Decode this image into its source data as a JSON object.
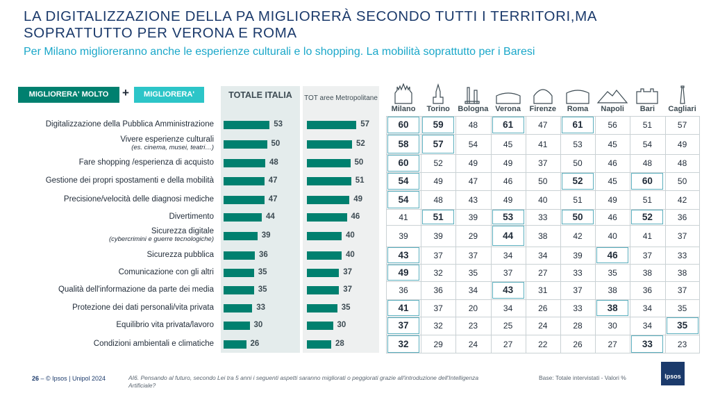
{
  "title": "LA DIGITALIZZAZIONE DELLA PA MIGLIORERÀ SECONDO TUTTI I TERRITORI,MA SOPRATTUTTO PER VERONA E ROMA",
  "subtitle": "Per Milano miglioreranno anche le esperienze culturali e lo shopping. La mobilità soprattutto per i Baresi",
  "legend": {
    "molto": "MIGLIORERA' MOLTO",
    "plus": "+",
    "migliorera": "MIGLIORERA'"
  },
  "colors": {
    "bar": "#00806f",
    "accent": "#2cc5c8",
    "title": "#1b3a6b",
    "subtitle": "#1aa7c9",
    "highlight_box": "#5aaebd"
  },
  "chart_data": {
    "type": "table",
    "columns": {
      "totale": "TOTALE ITALIA",
      "metro": "TOT aree Metropolitane"
    },
    "cities": [
      {
        "name": "Milano",
        "icon": "duomo-milano-icon"
      },
      {
        "name": "Torino",
        "icon": "mole-antonelliana-icon"
      },
      {
        "name": "Bologna",
        "icon": "torri-bologna-icon"
      },
      {
        "name": "Verona",
        "icon": "arena-verona-icon"
      },
      {
        "name": "Firenze",
        "icon": "duomo-firenze-icon"
      },
      {
        "name": "Roma",
        "icon": "colosseo-icon"
      },
      {
        "name": "Napoli",
        "icon": "vesuvio-icon"
      },
      {
        "name": "Bari",
        "icon": "basilica-bari-icon"
      },
      {
        "name": "Cagliari",
        "icon": "faro-cagliari-icon"
      }
    ],
    "rows": [
      {
        "label": "Digitalizzazione della Pubblica Amministrazione",
        "sub": "",
        "totale": 53,
        "metro": 57,
        "cities": [
          60,
          59,
          48,
          61,
          47,
          61,
          56,
          51,
          57
        ],
        "highlight": [
          0,
          1,
          3,
          5
        ]
      },
      {
        "label": "Vivere esperienze culturali",
        "sub": "(es. cinema, musei, teatri…)",
        "totale": 50,
        "metro": 52,
        "cities": [
          58,
          57,
          54,
          45,
          41,
          53,
          45,
          54,
          49
        ],
        "highlight": [
          0,
          1
        ]
      },
      {
        "label": "Fare shopping /esperienza di acquisto",
        "sub": "",
        "totale": 48,
        "metro": 50,
        "cities": [
          60,
          52,
          49,
          49,
          37,
          50,
          46,
          48,
          48
        ],
        "highlight": [
          0
        ]
      },
      {
        "label": "Gestione dei propri spostamenti e della mobilità",
        "sub": "",
        "totale": 47,
        "metro": 51,
        "cities": [
          54,
          49,
          47,
          46,
          50,
          52,
          45,
          60,
          50
        ],
        "highlight": [
          0,
          5,
          7
        ]
      },
      {
        "label": "Precisione/velocità delle diagnosi mediche",
        "sub": "",
        "totale": 47,
        "metro": 49,
        "cities": [
          54,
          48,
          43,
          49,
          40,
          51,
          49,
          51,
          42
        ],
        "highlight": [
          0
        ]
      },
      {
        "label": "Divertimento",
        "sub": "",
        "totale": 44,
        "metro": 46,
        "cities": [
          41,
          51,
          39,
          53,
          33,
          50,
          46,
          52,
          36
        ],
        "highlight": [
          1,
          3,
          5,
          7
        ]
      },
      {
        "label": "Sicurezza digitale",
        "sub": "(cybercrimini e guerre tecnologiche)",
        "totale": 39,
        "metro": 40,
        "cities": [
          39,
          39,
          29,
          44,
          38,
          42,
          40,
          41,
          37
        ],
        "highlight": [
          3
        ]
      },
      {
        "label": "Sicurezza pubblica",
        "sub": "",
        "totale": 36,
        "metro": 40,
        "cities": [
          43,
          37,
          37,
          34,
          34,
          39,
          46,
          37,
          33
        ],
        "highlight": [
          0,
          6
        ]
      },
      {
        "label": "Comunicazione con gli altri",
        "sub": "",
        "totale": 35,
        "metro": 37,
        "cities": [
          49,
          32,
          35,
          37,
          27,
          33,
          35,
          38,
          38
        ],
        "highlight": [
          0
        ]
      },
      {
        "label": "Qualità dell'informazione da parte dei media",
        "sub": "",
        "totale": 35,
        "metro": 37,
        "cities": [
          36,
          36,
          34,
          43,
          31,
          37,
          38,
          36,
          37
        ],
        "highlight": [
          3
        ]
      },
      {
        "label": "Protezione dei dati personali/vita privata",
        "sub": "",
        "totale": 33,
        "metro": 35,
        "cities": [
          41,
          37,
          20,
          34,
          26,
          33,
          38,
          34,
          35
        ],
        "highlight": [
          0,
          6
        ]
      },
      {
        "label": "Equilibrio vita privata/lavoro",
        "sub": "",
        "totale": 30,
        "metro": 30,
        "cities": [
          37,
          32,
          23,
          25,
          24,
          28,
          30,
          34,
          35
        ],
        "highlight": [
          0,
          8
        ]
      },
      {
        "label": "Condizioni ambientali e climatiche",
        "sub": "",
        "totale": 26,
        "metro": 28,
        "cities": [
          32,
          29,
          24,
          27,
          22,
          26,
          27,
          33,
          23
        ],
        "highlight": [
          0,
          7
        ]
      }
    ]
  },
  "footer": {
    "page": "26",
    "credit": " – © Ipsos | Unipol  2024",
    "question": "AI6. Pensando al futuro, secondo Lei tra 5 anni i seguenti aspetti saranno migliorati o peggiorati grazie all'introduzione dell'Intelligenza Artificiale?",
    "base": "Base: Totale intervistati  - Valori %",
    "logo": "Ipsos"
  }
}
